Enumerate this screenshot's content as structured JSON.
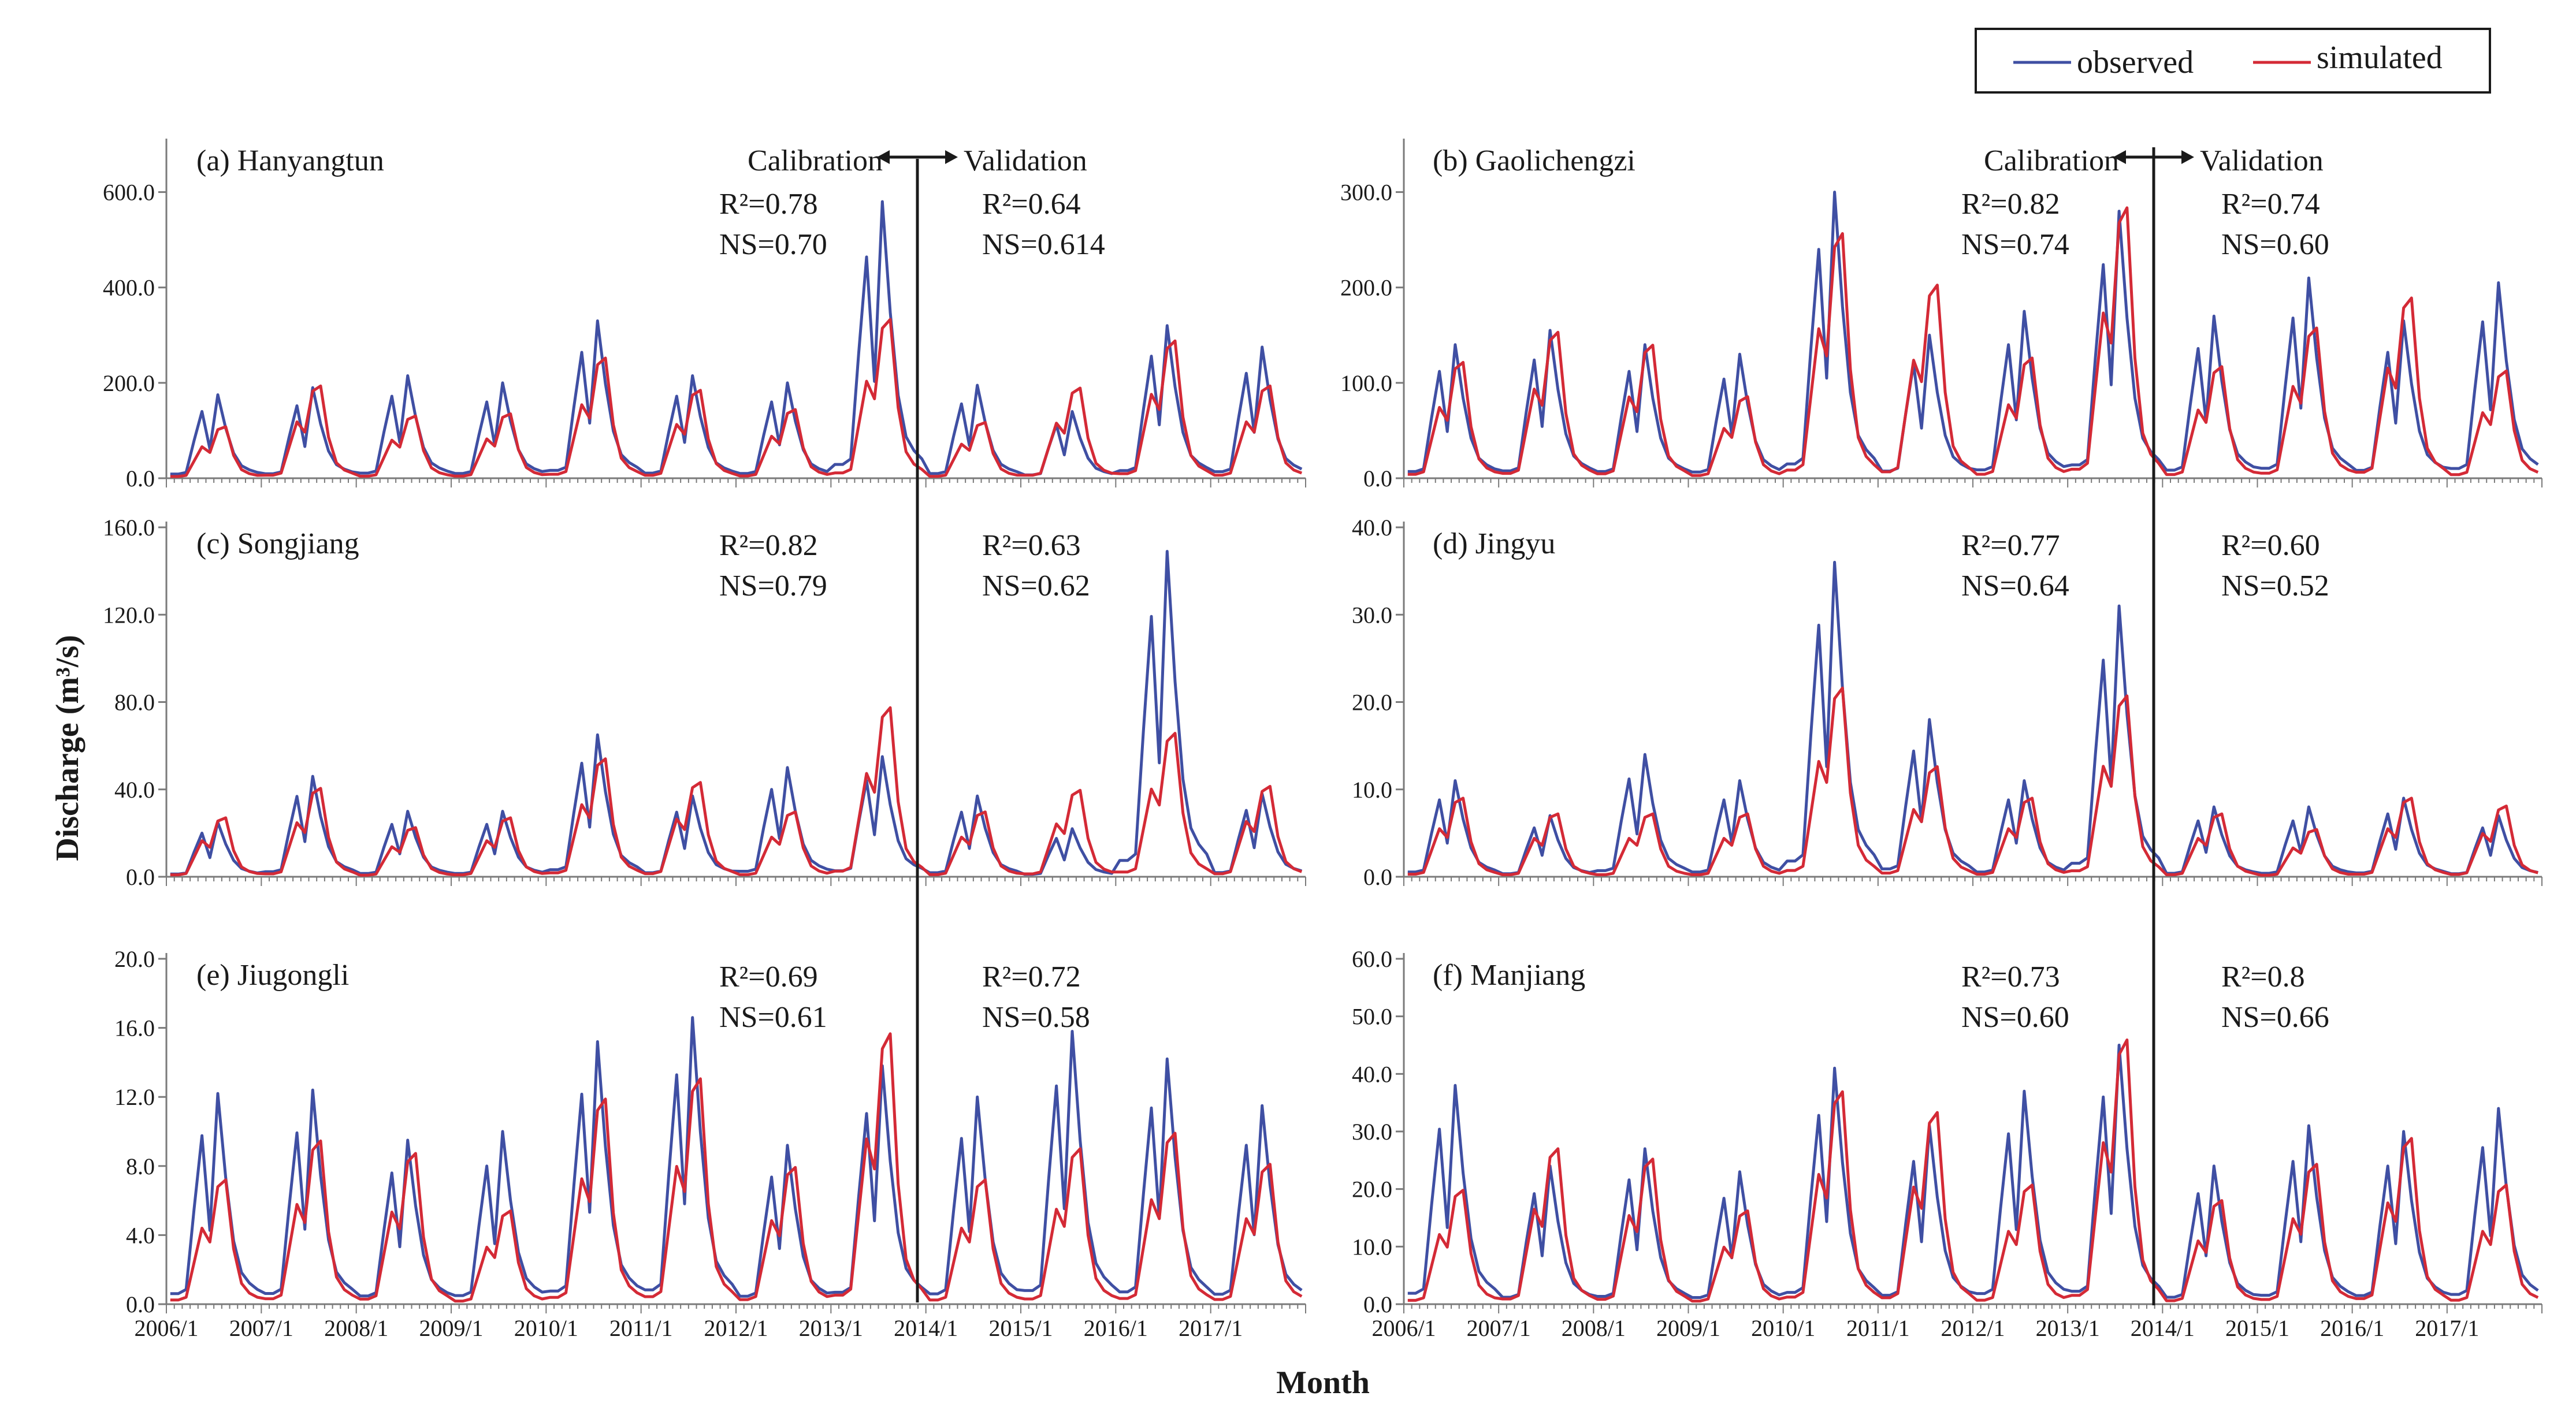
{
  "colors": {
    "observed": "#3f4fa3",
    "simulated": "#d42a36",
    "axis": "#7a7a7a",
    "text": "#1a1a1a"
  },
  "legend": {
    "observed": "observed",
    "simulated": "simulated"
  },
  "axes": {
    "ylabel": "Discharge (m³/s)",
    "xlabel": "Month"
  },
  "x_ticks": [
    "2006/1",
    "2007/1",
    "2008/1",
    "2009/1",
    "2010/1",
    "2011/1",
    "2012/1",
    "2013/1",
    "2014/1",
    "2015/1",
    "2016/1",
    "2017/1"
  ],
  "period_labels": {
    "calibration": "Calibration",
    "validation": "Validation"
  },
  "chart_data": [
    {
      "type": "line",
      "panel": "(a) Hanyangtun",
      "ylim": [
        0,
        700
      ],
      "yticks": [
        "0.0",
        "200.0",
        "400.0",
        "600.0"
      ],
      "ytick_values": [
        0,
        200,
        400,
        600
      ],
      "show_period_labels": true,
      "calibration": {
        "r2": "R²=0.78",
        "ns": "NS=0.70"
      },
      "validation": {
        "r2": "R²=0.64",
        "ns": "NS=0.614"
      },
      "peaks": [
        {
          "year": 2006,
          "obs": 175,
          "sim": 120
        },
        {
          "year": 2007,
          "obs": 190,
          "sim": 215
        },
        {
          "year": 2008,
          "obs": 215,
          "sim": 145
        },
        {
          "year": 2009,
          "obs": 200,
          "sim": 150
        },
        {
          "year": 2010,
          "obs": 330,
          "sim": 280
        },
        {
          "year": 2011,
          "obs": 215,
          "sim": 205
        },
        {
          "year": 2012,
          "obs": 200,
          "sim": 160
        },
        {
          "year": 2013,
          "obs": 580,
          "sim": 370
        },
        {
          "year": 2014,
          "obs": 195,
          "sim": 130
        },
        {
          "year": 2015,
          "obs": 140,
          "sim": 210
        },
        {
          "year": 2016,
          "obs": 320,
          "sim": 320
        },
        {
          "year": 2017,
          "obs": 275,
          "sim": 215
        }
      ]
    },
    {
      "type": "line",
      "panel": "(b) Gaolichengzi",
      "ylim": [
        0,
        350
      ],
      "yticks": [
        "0.0",
        "100.0",
        "200.0",
        "300.0"
      ],
      "ytick_values": [
        0,
        100,
        200,
        300
      ],
      "show_period_labels": true,
      "calibration": {
        "r2": "R²=0.82",
        "ns": "NS=0.74"
      },
      "validation": {
        "r2": "R²=0.74",
        "ns": "NS=0.60"
      },
      "peaks": [
        {
          "year": 2006,
          "obs": 140,
          "sim": 135
        },
        {
          "year": 2007,
          "obs": 155,
          "sim": 170
        },
        {
          "year": 2008,
          "obs": 140,
          "sim": 155
        },
        {
          "year": 2009,
          "obs": 130,
          "sim": 95
        },
        {
          "year": 2010,
          "obs": 300,
          "sim": 285
        },
        {
          "year": 2011,
          "obs": 150,
          "sim": 225
        },
        {
          "year": 2012,
          "obs": 175,
          "sim": 140
        },
        {
          "year": 2013,
          "obs": 280,
          "sim": 315
        },
        {
          "year": 2014,
          "obs": 170,
          "sim": 130
        },
        {
          "year": 2015,
          "obs": 210,
          "sim": 175
        },
        {
          "year": 2016,
          "obs": 165,
          "sim": 210
        },
        {
          "year": 2017,
          "obs": 205,
          "sim": 125
        }
      ]
    },
    {
      "type": "line",
      "panel": "(c) Songjiang",
      "ylim": [
        0,
        160
      ],
      "yticks": [
        "0.0",
        "40.0",
        "80.0",
        "120.0",
        "160.0"
      ],
      "ytick_values": [
        0,
        40,
        80,
        120,
        160
      ],
      "show_period_labels": false,
      "calibration": {
        "r2": "R²=0.82",
        "ns": "NS=0.79"
      },
      "validation": {
        "r2": "R²=0.63",
        "ns": "NS=0.62"
      },
      "peaks": [
        {
          "year": 2006,
          "obs": 25,
          "sim": 30
        },
        {
          "year": 2007,
          "obs": 46,
          "sim": 45
        },
        {
          "year": 2008,
          "obs": 30,
          "sim": 25
        },
        {
          "year": 2009,
          "obs": 30,
          "sim": 30
        },
        {
          "year": 2010,
          "obs": 65,
          "sim": 60
        },
        {
          "year": 2011,
          "obs": 37,
          "sim": 48
        },
        {
          "year": 2012,
          "obs": 50,
          "sim": 33
        },
        {
          "year": 2013,
          "obs": 55,
          "sim": 86
        },
        {
          "year": 2014,
          "obs": 37,
          "sim": 33
        },
        {
          "year": 2015,
          "obs": 22,
          "sim": 44
        },
        {
          "year": 2016,
          "obs": 149,
          "sim": 73
        },
        {
          "year": 2017,
          "obs": 38,
          "sim": 46
        }
      ]
    },
    {
      "type": "line",
      "panel": "(d) Jingyu",
      "ylim": [
        0,
        40
      ],
      "yticks": [
        "0.0",
        "10.0",
        "20.0",
        "30.0",
        "40.0"
      ],
      "ytick_values": [
        0,
        10,
        20,
        30,
        40
      ],
      "show_period_labels": false,
      "calibration": {
        "r2": "R²=0.77",
        "ns": "NS=0.64"
      },
      "validation": {
        "r2": "R²=0.60",
        "ns": "NS=0.52"
      },
      "peaks": [
        {
          "year": 2006,
          "obs": 11,
          "sim": 10
        },
        {
          "year": 2007,
          "obs": 7,
          "sim": 8
        },
        {
          "year": 2008,
          "obs": 14,
          "sim": 8
        },
        {
          "year": 2009,
          "obs": 11,
          "sim": 8
        },
        {
          "year": 2010,
          "obs": 36,
          "sim": 24
        },
        {
          "year": 2011,
          "obs": 18,
          "sim": 14
        },
        {
          "year": 2012,
          "obs": 11,
          "sim": 10
        },
        {
          "year": 2013,
          "obs": 31,
          "sim": 23
        },
        {
          "year": 2014,
          "obs": 8,
          "sim": 8
        },
        {
          "year": 2015,
          "obs": 8,
          "sim": 6
        },
        {
          "year": 2016,
          "obs": 9,
          "sim": 10
        },
        {
          "year": 2017,
          "obs": 7,
          "sim": 9
        }
      ]
    },
    {
      "type": "line",
      "panel": "(e) Jiugongli",
      "ylim": [
        0,
        20
      ],
      "yticks": [
        "0.0",
        "4.0",
        "8.0",
        "12.0",
        "16.0",
        "20.0"
      ],
      "ytick_values": [
        0,
        4,
        8,
        12,
        16,
        20
      ],
      "show_period_labels": false,
      "calibration": {
        "r2": "R²=0.69",
        "ns": "NS=0.61"
      },
      "validation": {
        "r2": "R²=0.72",
        "ns": "NS=0.58"
      },
      "peaks": [
        {
          "year": 2006,
          "obs": 12.2,
          "sim": 8
        },
        {
          "year": 2007,
          "obs": 12.4,
          "sim": 10.5
        },
        {
          "year": 2008,
          "obs": 9.5,
          "sim": 9.7
        },
        {
          "year": 2009,
          "obs": 10,
          "sim": 6
        },
        {
          "year": 2010,
          "obs": 15.2,
          "sim": 13.2
        },
        {
          "year": 2011,
          "obs": 16.6,
          "sim": 14.5
        },
        {
          "year": 2012,
          "obs": 9.2,
          "sim": 8.8
        },
        {
          "year": 2013,
          "obs": 13.8,
          "sim": 17.4
        },
        {
          "year": 2014,
          "obs": 12,
          "sim": 8
        },
        {
          "year": 2015,
          "obs": 15.8,
          "sim": 10
        },
        {
          "year": 2016,
          "obs": 14.2,
          "sim": 11
        },
        {
          "year": 2017,
          "obs": 11.5,
          "sim": 9
        }
      ]
    },
    {
      "type": "line",
      "panel": "(f) Manjiang",
      "ylim": [
        0,
        60
      ],
      "yticks": [
        "0.0",
        "10.0",
        "20.0",
        "30.0",
        "40.0",
        "50.0",
        "60.0"
      ],
      "ytick_values": [
        0,
        10,
        20,
        30,
        40,
        50,
        60
      ],
      "show_period_labels": false,
      "calibration": {
        "r2": "R²=0.73",
        "ns": "NS=0.60"
      },
      "validation": {
        "r2": "R²=0.8",
        "ns": "NS=0.66"
      },
      "peaks": [
        {
          "year": 2006,
          "obs": 38,
          "sim": 22
        },
        {
          "year": 2007,
          "obs": 24,
          "sim": 30
        },
        {
          "year": 2008,
          "obs": 27,
          "sim": 28
        },
        {
          "year": 2009,
          "obs": 23,
          "sim": 18
        },
        {
          "year": 2010,
          "obs": 41,
          "sim": 41
        },
        {
          "year": 2011,
          "obs": 31,
          "sim": 37
        },
        {
          "year": 2012,
          "obs": 37,
          "sim": 23
        },
        {
          "year": 2013,
          "obs": 45,
          "sim": 51
        },
        {
          "year": 2014,
          "obs": 24,
          "sim": 20
        },
        {
          "year": 2015,
          "obs": 31,
          "sim": 27
        },
        {
          "year": 2016,
          "obs": 30,
          "sim": 32
        },
        {
          "year": 2017,
          "obs": 34,
          "sim": 23
        }
      ]
    }
  ]
}
